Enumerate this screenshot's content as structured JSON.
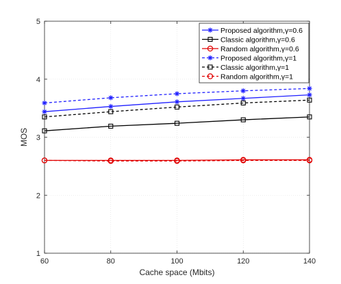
{
  "chart_data": {
    "type": "line",
    "xlabel": "Cache space (Mbits)",
    "ylabel": "MOS",
    "x": [
      60,
      80,
      100,
      120,
      140
    ],
    "xlim": [
      60,
      140
    ],
    "ylim": [
      1,
      5
    ],
    "xticks": [
      "60",
      "80",
      "100",
      "120",
      "140"
    ],
    "yticks": [
      "1",
      "2",
      "3",
      "4",
      "5"
    ],
    "grid": true,
    "legend_position": "top-right",
    "series": [
      {
        "name": "Proposed algorithm,γ=0.6",
        "values": [
          3.44,
          3.53,
          3.61,
          3.67,
          3.73
        ],
        "color": "#1f1fff",
        "dash": "solid",
        "marker": "star"
      },
      {
        "name": "Classic algorithm,γ=0.6",
        "values": [
          3.11,
          3.19,
          3.24,
          3.3,
          3.35
        ],
        "color": "#000000",
        "dash": "solid",
        "marker": "square"
      },
      {
        "name": "Random algorithm,γ=0.6",
        "values": [
          2.6,
          2.6,
          2.6,
          2.61,
          2.61
        ],
        "color": "#e00000",
        "dash": "solid",
        "marker": "circle"
      },
      {
        "name": "Proposed algorithm,γ=1",
        "values": [
          3.59,
          3.68,
          3.75,
          3.8,
          3.84
        ],
        "color": "#1f1fff",
        "dash": "dashed",
        "marker": "star"
      },
      {
        "name": "Classic algorithm,γ=1",
        "values": [
          3.35,
          3.44,
          3.52,
          3.59,
          3.64
        ],
        "color": "#000000",
        "dash": "dashed",
        "marker": "square"
      },
      {
        "name": "Random algorithm,γ=1",
        "values": [
          2.6,
          2.59,
          2.59,
          2.6,
          2.6
        ],
        "color": "#e00000",
        "dash": "dashed",
        "marker": "circle"
      }
    ]
  }
}
